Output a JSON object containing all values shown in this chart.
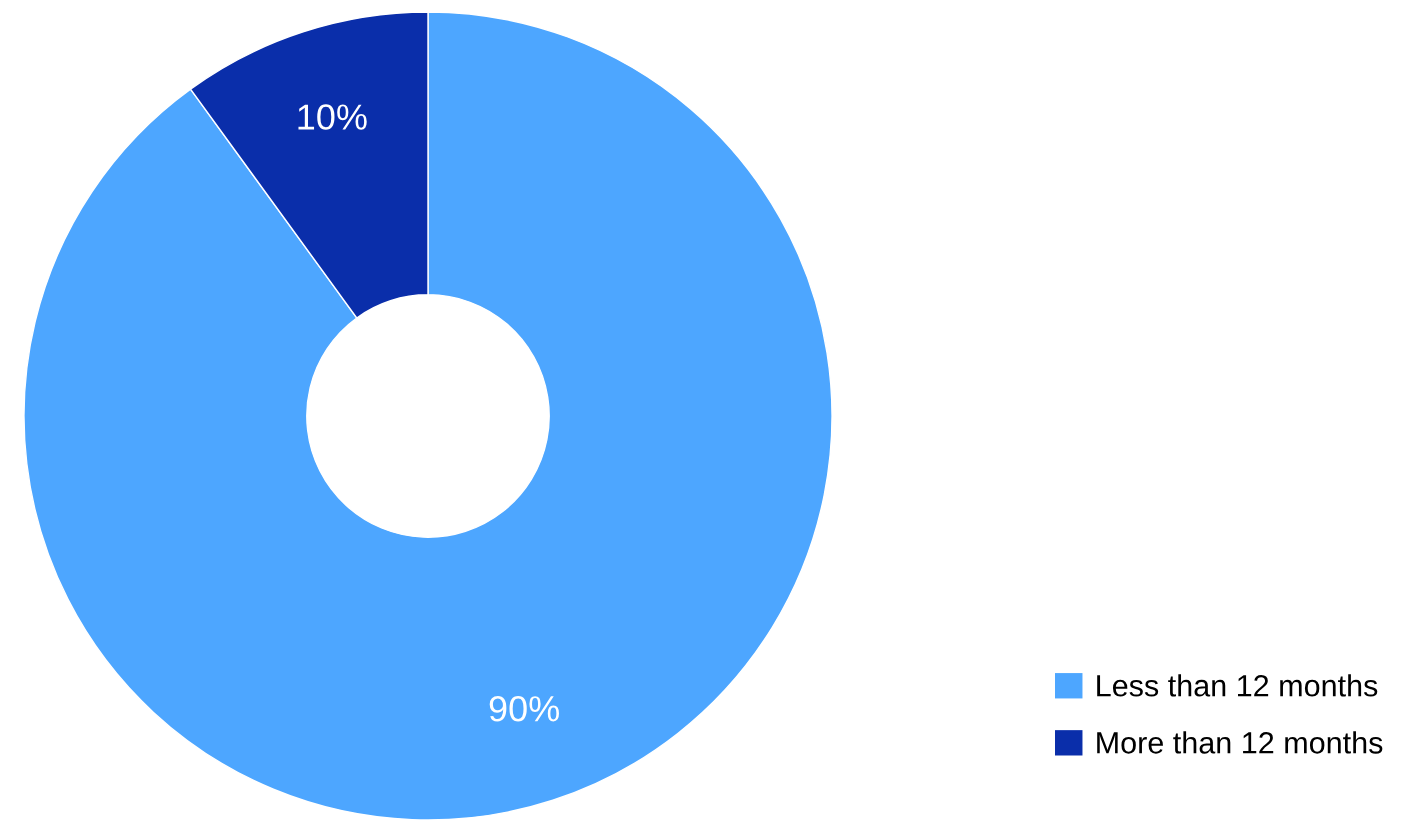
{
  "chart_data": {
    "type": "donut",
    "categories": [
      "Less than 12 months",
      "More than 12 months"
    ],
    "values": [
      90,
      10
    ],
    "colors": [
      "#4da6ff",
      "#0a2eaa"
    ],
    "value_labels": [
      "90%",
      "10%"
    ],
    "legend": "bottom right"
  }
}
